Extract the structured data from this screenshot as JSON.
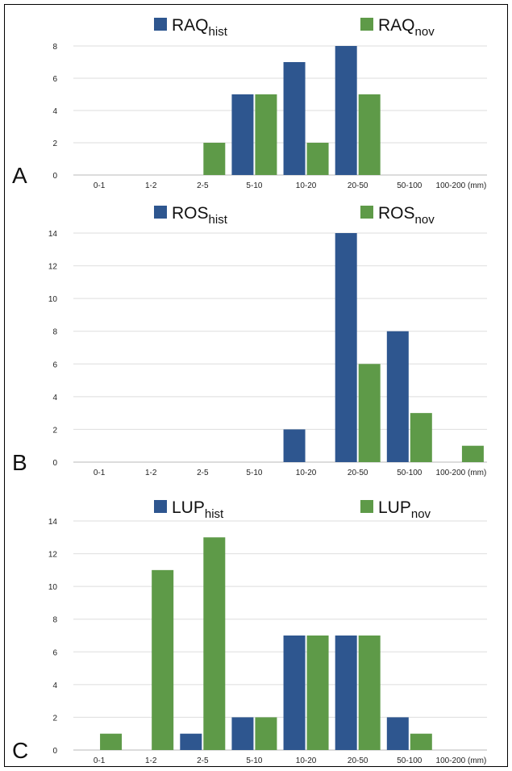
{
  "colors": {
    "hist": "#2e568f",
    "nov": "#5e9a48"
  },
  "chart_data": [
    {
      "type": "bar",
      "panel_label": "A",
      "categories": [
        "0-1",
        "1-2",
        "2-5",
        "5-10",
        "10-20",
        "20-50",
        "50-100",
        "100-200 (mm)"
      ],
      "series": [
        {
          "name_base": "RAQ",
          "name_sub": "hist",
          "color": "#2e568f",
          "values": [
            0,
            0,
            0,
            5,
            7,
            8,
            0,
            0
          ]
        },
        {
          "name_base": "RAQ",
          "name_sub": "nov",
          "color": "#5e9a48",
          "values": [
            0,
            0,
            2,
            5,
            2,
            5,
            0,
            0
          ]
        }
      ],
      "ylim": [
        0,
        8
      ],
      "yticks": [
        0,
        2,
        4,
        6,
        8
      ],
      "grid": true,
      "legend": "top"
    },
    {
      "type": "bar",
      "panel_label": "B",
      "categories": [
        "0-1",
        "1-2",
        "2-5",
        "5-10",
        "10-20",
        "20-50",
        "50-100",
        "100-200 (mm)"
      ],
      "series": [
        {
          "name_base": "ROS",
          "name_sub": "hist",
          "color": "#2e568f",
          "values": [
            0,
            0,
            0,
            0,
            2,
            14,
            8,
            0
          ]
        },
        {
          "name_base": "ROS",
          "name_sub": "nov",
          "color": "#5e9a48",
          "values": [
            0,
            0,
            0,
            0,
            0,
            6,
            3,
            1
          ]
        }
      ],
      "ylim": [
        0,
        14
      ],
      "yticks": [
        0,
        2,
        4,
        6,
        8,
        10,
        12,
        14
      ],
      "grid": true,
      "legend": "top"
    },
    {
      "type": "bar",
      "panel_label": "C",
      "categories": [
        "0-1",
        "1-2",
        "2-5",
        "5-10",
        "10-20",
        "20-50",
        "50-100",
        "100-200 (mm)"
      ],
      "series": [
        {
          "name_base": "LUP",
          "name_sub": "hist",
          "color": "#2e568f",
          "values": [
            0,
            0,
            1,
            2,
            7,
            7,
            2,
            0
          ]
        },
        {
          "name_base": "LUP",
          "name_sub": "nov",
          "color": "#5e9a48",
          "values": [
            1,
            11,
            13,
            2,
            7,
            7,
            1,
            0
          ]
        }
      ],
      "ylim": [
        0,
        14
      ],
      "yticks": [
        0,
        2,
        4,
        6,
        8,
        10,
        12,
        14
      ],
      "grid": true,
      "legend": "top"
    }
  ]
}
